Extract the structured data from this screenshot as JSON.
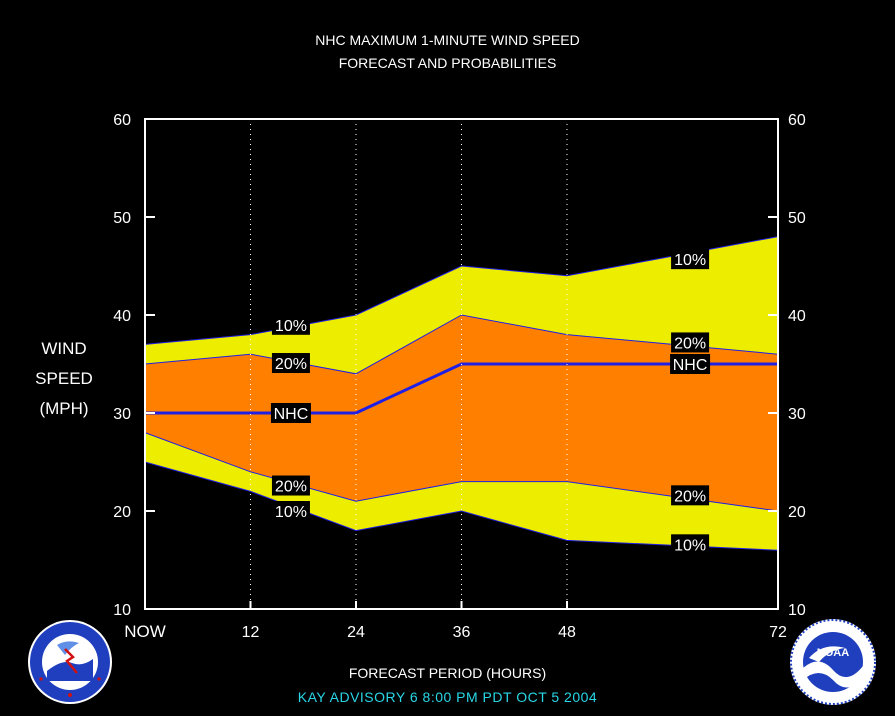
{
  "header": {
    "title_line1": "NHC MAXIMUM 1-MINUTE WIND SPEED",
    "title_line2": "FORECAST AND PROBABILITIES"
  },
  "yaxis_label": {
    "line1": "WIND",
    "line2": "SPEED",
    "line3": "(MPH)"
  },
  "xaxis_label": "FORECAST PERIOD (HOURS)",
  "advisory": "KAY   ADVISORY  6 8:00  PM  PDT  OCT  5  2004",
  "logos": {
    "left_text": "NATIONAL WEATHER SERVICE",
    "right_text": "NOAA",
    "right_ring_text": "NATIONAL OCEANIC AND ATMOSPHERIC ADMINISTRATION U.S. DEPARTMENT OF COMMERCE"
  },
  "colors": {
    "background": "#000000",
    "outer_band": "#eded00",
    "inner_band": "#ff8000",
    "nhc_line": "#1f1fe6",
    "band_edge": "#1f1fe6",
    "advisory_text": "#29d6e6"
  },
  "chart_data": {
    "type": "area",
    "xlim": [
      0,
      72
    ],
    "ylim": [
      10,
      60
    ],
    "xticks": [
      {
        "x": 0,
        "label": "NOW"
      },
      {
        "x": 12,
        "label": "12"
      },
      {
        "x": 24,
        "label": "24"
      },
      {
        "x": 36,
        "label": "36"
      },
      {
        "x": 48,
        "label": "48"
      },
      {
        "x": 72,
        "label": "72"
      }
    ],
    "yticks": [
      10,
      20,
      30,
      40,
      50,
      60
    ],
    "vertical_grid": [
      12,
      24,
      36,
      48
    ],
    "x": [
      0,
      12,
      24,
      36,
      48,
      72
    ],
    "series": [
      {
        "name": "10%",
        "values": [
          37,
          38,
          40,
          45,
          44,
          48
        ]
      },
      {
        "name": "20%",
        "values": [
          35,
          36,
          34,
          40,
          38,
          36
        ]
      },
      {
        "name": "NHC",
        "values": [
          30,
          30,
          30,
          35,
          35,
          35
        ]
      },
      {
        "name": "20%",
        "values": [
          28,
          24,
          21,
          23,
          23,
          20
        ]
      },
      {
        "name": "10%",
        "values": [
          25,
          22,
          18,
          20,
          17,
          16
        ]
      }
    ],
    "labels": [
      {
        "text": "10%",
        "x": 16.6,
        "y": 39.0
      },
      {
        "text": "20%",
        "x": 16.6,
        "y": 35.1
      },
      {
        "text": "NHC",
        "x": 16.6,
        "y": 30.0
      },
      {
        "text": "20%",
        "x": 16.6,
        "y": 22.6
      },
      {
        "text": "10%",
        "x": 16.6,
        "y": 20.0
      },
      {
        "text": "10%",
        "x": 62.0,
        "y": 45.7
      },
      {
        "text": "20%",
        "x": 62.0,
        "y": 37.2
      },
      {
        "text": "NHC",
        "x": 62.0,
        "y": 35.0
      },
      {
        "text": "20%",
        "x": 62.0,
        "y": 21.6
      },
      {
        "text": "10%",
        "x": 62.0,
        "y": 16.6
      }
    ]
  }
}
